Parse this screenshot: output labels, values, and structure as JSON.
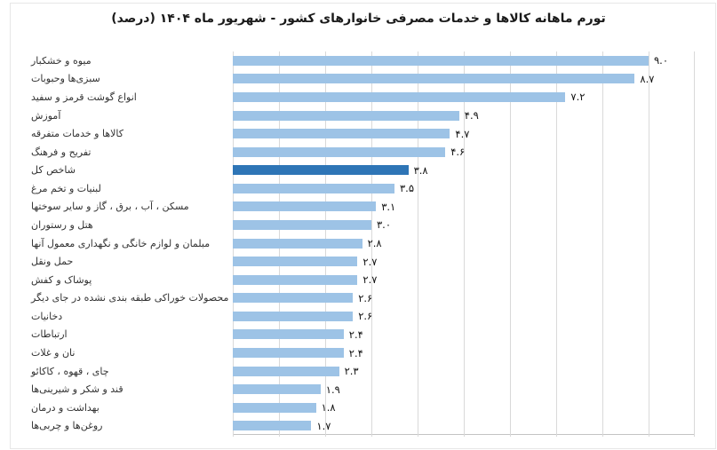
{
  "title": "تورم ماهانه کالاها و خدمات مصرفی خانوارهای کشور - شهریور ماه ۱۴۰۴ (درصد)",
  "chart_data": {
    "type": "bar",
    "orientation": "horizontal",
    "title": "تورم ماهانه کالاها و خدمات مصرفی خانوارهای کشور - شهریور ماه ۱۴۰۴ (درصد)",
    "categories": [
      "میوه و خشکبار",
      "سبزی‌ها وحبوبات",
      "انواع گوشت قرمز و سفید",
      "آموزش",
      "کالاها و خدمات متفرقه",
      "تفریح و فرهنگ",
      "شاخص کل",
      "لبنیات و تخم مرغ",
      "مسکن ، آب ، برق ، گاز و سایر سوختها",
      "هتل و رستوران",
      "مبلمان و لوازم خانگی و نگهداری معمول آنها",
      "حمل ونقل",
      "پوشاک و کفش",
      "محصولات خوراکی طبقه بندی نشده در جای دیگر",
      "دخانیات",
      "ارتباطات",
      "نان و غلات",
      "چای ، قهوه ، کاکائو",
      "قند و شکر و شیرینی‌ها",
      "بهداشت و درمان",
      "روغن‌ها و چربی‌ها"
    ],
    "values": [
      9.0,
      8.7,
      7.2,
      4.9,
      4.7,
      4.6,
      3.8,
      3.5,
      3.1,
      3.0,
      2.8,
      2.7,
      2.7,
      2.6,
      2.6,
      2.4,
      2.4,
      2.3,
      1.9,
      1.8,
      1.7
    ],
    "value_labels": [
      "۹.۰",
      "۸.۷",
      "۷.۲",
      "۴.۹",
      "۴.۷",
      "۴.۶",
      "۳.۸",
      "۳.۵",
      "۳.۱",
      "۳.۰",
      "۲.۸",
      "۲.۷",
      "۲.۷",
      "۲.۶",
      "۲.۶",
      "۲.۴",
      "۲.۴",
      "۲.۳",
      "۱.۹",
      "۱.۸",
      "۱.۷"
    ],
    "highlight_index": 6,
    "highlight_category": "شاخص کل",
    "xlim": [
      0,
      10
    ],
    "gridline_step": 1,
    "grid": true,
    "legend": false,
    "bar_color": "#9DC3E6",
    "highlight_color": "#2E75B6",
    "gridline_color": "#D9D9D9",
    "axis_line_color": "#C3C3C3"
  }
}
